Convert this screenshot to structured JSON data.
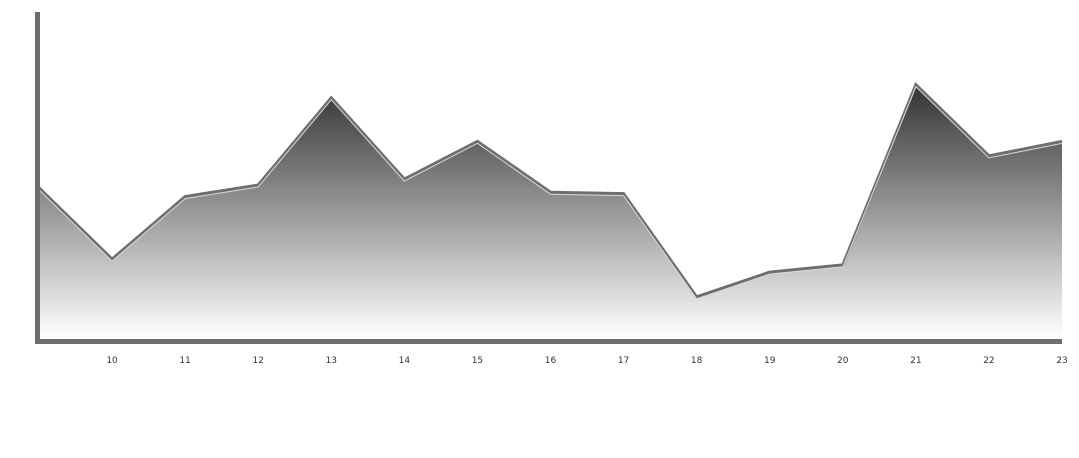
{
  "chart_data": {
    "type": "area",
    "x": [
      9,
      10,
      11,
      12,
      13,
      14,
      15,
      16,
      17,
      18,
      19,
      20,
      21,
      22,
      23
    ],
    "x_tick_labels": [
      "10",
      "11",
      "12",
      "13",
      "14",
      "15",
      "16",
      "17",
      "18",
      "19",
      "20",
      "21",
      "22",
      "23"
    ],
    "series": [
      {
        "values": [
          104,
          55,
          98,
          106,
          166,
          110,
          136,
          101,
          100,
          29,
          46,
          51,
          175,
          126,
          136
        ]
      }
    ],
    "ylim": [
      0,
      225
    ],
    "grid": false,
    "legend": "none",
    "colors": {
      "axis": "#6e6e6e",
      "line": "#6e6e6e",
      "highlight": "#d9d9d9",
      "gradient_top": "#333333",
      "gradient_bottom": "#ffffff"
    }
  }
}
